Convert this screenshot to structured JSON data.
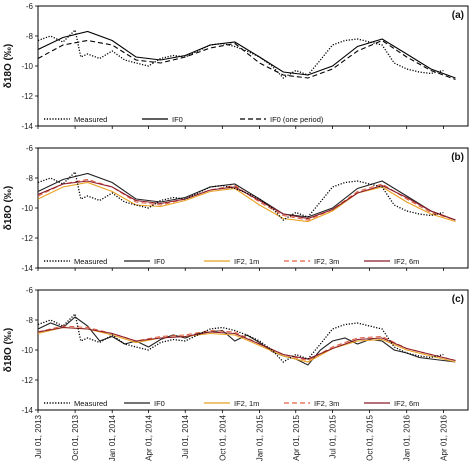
{
  "chart_data": [
    {
      "type": "line",
      "panel_label": "(a)",
      "ylabel": "δ18O (‰)",
      "ylim": [
        -14,
        -6
      ],
      "yticks": [
        "-6",
        "-8",
        "-10",
        "-12",
        "-14"
      ],
      "legend": {
        "placement": "bottom-left",
        "entries": [
          "Measured",
          "IF0",
          "IF0 (one period)"
        ]
      },
      "series": [
        {
          "name": "Measured",
          "style": "dotted",
          "color": "#000000",
          "x": [
            "2013-07-01",
            "2013-08-01",
            "2013-09-01",
            "2013-10-01",
            "2013-10-15",
            "2013-11-01",
            "2013-12-01",
            "2014-01-01",
            "2014-02-01",
            "2014-03-01",
            "2014-04-01",
            "2014-05-01",
            "2014-06-01",
            "2014-07-01",
            "2014-08-01",
            "2014-09-01",
            "2014-10-01",
            "2014-11-01",
            "2014-12-01",
            "2015-01-01",
            "2015-02-01",
            "2015-03-01",
            "2015-04-01",
            "2015-05-01",
            "2015-06-01",
            "2015-07-01",
            "2015-08-01",
            "2015-09-01",
            "2015-10-01",
            "2015-11-01",
            "2015-12-01",
            "2016-01-01",
            "2016-02-01",
            "2016-03-01",
            "2016-04-01"
          ],
          "y": [
            -8.3,
            -8.0,
            -8.4,
            -7.6,
            -9.4,
            -9.2,
            -9.5,
            -9.0,
            -9.6,
            -9.8,
            -10.0,
            -9.5,
            -9.3,
            -9.4,
            -9.0,
            -8.6,
            -8.5,
            -8.7,
            -9.0,
            -9.4,
            -10.0,
            -10.8,
            -10.3,
            -10.6,
            -9.6,
            -8.6,
            -8.3,
            -8.2,
            -8.4,
            -8.6,
            -9.8,
            -10.2,
            -10.4,
            -10.5,
            -10.3
          ]
        },
        {
          "name": "IF0",
          "style": "solid",
          "color": "#000000",
          "x": [
            "2013-07-01",
            "2013-09-01",
            "2013-11-01",
            "2014-01-01",
            "2014-03-01",
            "2014-05-01",
            "2014-07-01",
            "2014-09-01",
            "2014-11-01",
            "2015-01-01",
            "2015-03-01",
            "2015-05-01",
            "2015-07-01",
            "2015-09-01",
            "2015-11-01",
            "2016-01-01",
            "2016-03-01",
            "2016-05-01"
          ],
          "y": [
            -8.9,
            -8.1,
            -7.7,
            -8.3,
            -9.4,
            -9.6,
            -9.3,
            -8.6,
            -8.4,
            -9.4,
            -10.4,
            -10.6,
            -10.0,
            -8.7,
            -8.2,
            -9.2,
            -10.2,
            -10.8
          ]
        },
        {
          "name": "IF0 (one period)",
          "style": "dashed",
          "color": "#000000",
          "x": [
            "2013-07-01",
            "2013-09-01",
            "2013-11-01",
            "2014-01-01",
            "2014-03-01",
            "2014-05-01",
            "2014-07-01",
            "2014-09-01",
            "2014-11-01",
            "2015-01-01",
            "2015-03-01",
            "2015-05-01",
            "2015-07-01",
            "2015-09-01",
            "2015-11-01",
            "2016-01-01",
            "2016-03-01",
            "2016-05-01"
          ],
          "y": [
            -9.5,
            -8.6,
            -8.3,
            -8.6,
            -9.6,
            -9.8,
            -9.4,
            -8.8,
            -8.5,
            -9.8,
            -10.6,
            -10.8,
            -10.2,
            -9.0,
            -8.3,
            -9.4,
            -10.3,
            -10.9
          ]
        }
      ]
    },
    {
      "type": "line",
      "panel_label": "(b)",
      "ylabel": "δ18O (‰)",
      "ylim": [
        -14,
        -6
      ],
      "yticks": [
        "-6",
        "-8",
        "-10",
        "-12",
        "-14"
      ],
      "legend": {
        "placement": "bottom-left",
        "entries": [
          "Measured",
          "IF0",
          "IF2, 1m",
          "IF2, 3m",
          "IF2, 6m"
        ]
      },
      "series": [
        {
          "name": "Measured",
          "style": "dotted",
          "color": "#000000",
          "x": [
            "2013-07-01",
            "2013-08-01",
            "2013-09-01",
            "2013-10-01",
            "2013-10-15",
            "2013-11-01",
            "2013-12-01",
            "2014-01-01",
            "2014-02-01",
            "2014-03-01",
            "2014-04-01",
            "2014-05-01",
            "2014-06-01",
            "2014-07-01",
            "2014-08-01",
            "2014-09-01",
            "2014-10-01",
            "2014-11-01",
            "2014-12-01",
            "2015-01-01",
            "2015-02-01",
            "2015-03-01",
            "2015-04-01",
            "2015-05-01",
            "2015-06-01",
            "2015-07-01",
            "2015-08-01",
            "2015-09-01",
            "2015-10-01",
            "2015-11-01",
            "2015-12-01",
            "2016-01-01",
            "2016-02-01",
            "2016-03-01",
            "2016-04-01"
          ],
          "y": [
            -8.3,
            -8.0,
            -8.4,
            -7.6,
            -9.4,
            -9.2,
            -9.5,
            -9.0,
            -9.6,
            -9.8,
            -10.0,
            -9.5,
            -9.3,
            -9.4,
            -9.0,
            -8.6,
            -8.5,
            -8.7,
            -9.0,
            -9.4,
            -10.0,
            -10.8,
            -10.3,
            -10.6,
            -9.6,
            -8.6,
            -8.3,
            -8.2,
            -8.4,
            -8.6,
            -9.8,
            -10.2,
            -10.4,
            -10.5,
            -10.3
          ]
        },
        {
          "name": "IF0",
          "style": "solid",
          "color": "#222222",
          "x": [
            "2013-07-01",
            "2013-09-01",
            "2013-11-01",
            "2014-01-01",
            "2014-03-01",
            "2014-05-01",
            "2014-07-01",
            "2014-09-01",
            "2014-11-01",
            "2015-01-01",
            "2015-03-01",
            "2015-05-01",
            "2015-07-01",
            "2015-09-01",
            "2015-11-01",
            "2016-01-01",
            "2016-03-01",
            "2016-05-01"
          ],
          "y": [
            -8.9,
            -8.1,
            -7.7,
            -8.3,
            -9.4,
            -9.6,
            -9.3,
            -8.6,
            -8.4,
            -9.4,
            -10.4,
            -10.6,
            -10.0,
            -8.7,
            -8.2,
            -9.2,
            -10.2,
            -10.8
          ]
        },
        {
          "name": "IF2, 1m",
          "style": "solid",
          "color": "#e8a020",
          "x": [
            "2013-07-01",
            "2013-09-01",
            "2013-11-01",
            "2014-01-01",
            "2014-03-01",
            "2014-05-01",
            "2014-07-01",
            "2014-09-01",
            "2014-11-01",
            "2015-01-01",
            "2015-03-01",
            "2015-05-01",
            "2015-07-01",
            "2015-09-01",
            "2015-11-01",
            "2016-01-01",
            "2016-03-01",
            "2016-05-01"
          ],
          "y": [
            -9.4,
            -8.6,
            -8.3,
            -8.9,
            -9.8,
            -9.9,
            -9.5,
            -8.9,
            -8.7,
            -9.8,
            -10.7,
            -10.9,
            -10.2,
            -9.0,
            -8.6,
            -9.6,
            -10.4,
            -10.9
          ]
        },
        {
          "name": "IF2, 3m",
          "style": "dashed",
          "color": "#e06040",
          "x": [
            "2013-07-01",
            "2013-09-01",
            "2013-11-01",
            "2014-01-01",
            "2014-03-01",
            "2014-05-01",
            "2014-07-01",
            "2014-09-01",
            "2014-11-01",
            "2015-01-01",
            "2015-03-01",
            "2015-05-01",
            "2015-07-01",
            "2015-09-01",
            "2015-11-01",
            "2016-01-01",
            "2016-03-01",
            "2016-05-01"
          ],
          "y": [
            -9.2,
            -8.4,
            -8.1,
            -8.6,
            -9.6,
            -9.8,
            -9.4,
            -8.8,
            -8.5,
            -9.6,
            -10.5,
            -10.8,
            -10.1,
            -8.9,
            -8.4,
            -9.4,
            -10.3,
            -10.8
          ]
        },
        {
          "name": "IF2, 6m",
          "style": "solid",
          "color": "#8b1a2a",
          "x": [
            "2013-07-01",
            "2013-09-01",
            "2013-11-01",
            "2014-01-01",
            "2014-03-01",
            "2014-05-01",
            "2014-07-01",
            "2014-09-01",
            "2014-11-01",
            "2015-01-01",
            "2015-03-01",
            "2015-05-01",
            "2015-07-01",
            "2015-09-01",
            "2015-11-01",
            "2016-01-01",
            "2016-03-01",
            "2016-05-01"
          ],
          "y": [
            -9.1,
            -8.4,
            -8.2,
            -8.6,
            -9.5,
            -9.7,
            -9.4,
            -8.8,
            -8.6,
            -9.5,
            -10.4,
            -10.7,
            -10.1,
            -9.0,
            -8.5,
            -9.3,
            -10.2,
            -10.8
          ]
        }
      ]
    },
    {
      "type": "line",
      "panel_label": "(c)",
      "ylabel": "δ18O (‰)",
      "ylim": [
        -14,
        -6
      ],
      "yticks": [
        "-6",
        "-8",
        "-10",
        "-12",
        "-14"
      ],
      "legend": {
        "placement": "bottom-left",
        "entries": [
          "Measured",
          "IF0",
          "IF2, 1m",
          "IF2, 3m",
          "IF2, 6m"
        ]
      },
      "series": [
        {
          "name": "Measured",
          "style": "dotted",
          "color": "#000000",
          "x": [
            "2013-07-01",
            "2013-08-01",
            "2013-09-01",
            "2013-10-01",
            "2013-10-15",
            "2013-11-01",
            "2013-12-01",
            "2014-01-01",
            "2014-02-01",
            "2014-03-01",
            "2014-04-01",
            "2014-05-01",
            "2014-06-01",
            "2014-07-01",
            "2014-08-01",
            "2014-09-01",
            "2014-10-01",
            "2014-11-01",
            "2014-12-01",
            "2015-01-01",
            "2015-02-01",
            "2015-03-01",
            "2015-04-01",
            "2015-05-01",
            "2015-06-01",
            "2015-07-01",
            "2015-08-01",
            "2015-09-01",
            "2015-10-01",
            "2015-11-01",
            "2015-12-01",
            "2016-01-01",
            "2016-02-01",
            "2016-03-01",
            "2016-04-01"
          ],
          "y": [
            -8.3,
            -8.0,
            -8.4,
            -7.6,
            -9.4,
            -9.2,
            -9.5,
            -9.0,
            -9.6,
            -9.8,
            -10.0,
            -9.5,
            -9.3,
            -9.4,
            -9.0,
            -8.6,
            -8.5,
            -8.7,
            -9.0,
            -9.4,
            -10.0,
            -10.8,
            -10.3,
            -10.6,
            -9.6,
            -8.6,
            -8.3,
            -8.2,
            -8.4,
            -8.6,
            -9.8,
            -10.2,
            -10.4,
            -10.5,
            -10.3
          ]
        },
        {
          "name": "IF0",
          "style": "solid",
          "color": "#222222",
          "x": [
            "2013-07-01",
            "2013-08-01",
            "2013-09-01",
            "2013-10-01",
            "2013-11-01",
            "2013-12-01",
            "2014-01-01",
            "2014-02-01",
            "2014-03-01",
            "2014-04-01",
            "2014-05-01",
            "2014-06-01",
            "2014-07-01",
            "2014-08-01",
            "2014-09-01",
            "2014-10-01",
            "2014-11-01",
            "2014-12-01",
            "2015-01-01",
            "2015-02-01",
            "2015-03-01",
            "2015-04-01",
            "2015-05-01",
            "2015-06-01",
            "2015-07-01",
            "2015-08-01",
            "2015-09-01",
            "2015-10-01",
            "2015-11-01",
            "2015-12-01",
            "2016-01-01",
            "2016-02-01",
            "2016-03-01",
            "2016-04-01",
            "2016-05-01"
          ],
          "y": [
            -8.6,
            -8.2,
            -8.5,
            -7.8,
            -8.4,
            -9.4,
            -9.1,
            -9.6,
            -9.4,
            -9.8,
            -9.3,
            -9.0,
            -9.2,
            -8.9,
            -8.8,
            -8.7,
            -9.4,
            -9.0,
            -9.5,
            -10.1,
            -10.4,
            -10.6,
            -11.0,
            -10.0,
            -9.4,
            -9.2,
            -9.6,
            -9.3,
            -9.4,
            -10.0,
            -10.2,
            -10.5,
            -10.6,
            -10.7,
            -10.8
          ]
        },
        {
          "name": "IF2, 1m",
          "style": "solid",
          "color": "#e8a020",
          "x": [
            "2013-07-01",
            "2013-09-01",
            "2013-11-01",
            "2014-01-01",
            "2014-03-01",
            "2014-05-01",
            "2014-07-01",
            "2014-09-01",
            "2014-11-01",
            "2015-01-01",
            "2015-03-01",
            "2015-05-01",
            "2015-07-01",
            "2015-09-01",
            "2015-11-01",
            "2016-01-01",
            "2016-03-01",
            "2016-05-01"
          ],
          "y": [
            -8.9,
            -8.5,
            -8.6,
            -9.0,
            -9.5,
            -9.2,
            -9.1,
            -8.9,
            -9.0,
            -9.7,
            -10.4,
            -10.8,
            -9.9,
            -9.4,
            -9.3,
            -10.0,
            -10.4,
            -10.8
          ]
        },
        {
          "name": "IF2, 3m",
          "style": "dashed",
          "color": "#e06040",
          "x": [
            "2013-07-01",
            "2013-09-01",
            "2013-11-01",
            "2014-01-01",
            "2014-03-01",
            "2014-05-01",
            "2014-07-01",
            "2014-09-01",
            "2014-11-01",
            "2015-01-01",
            "2015-03-01",
            "2015-05-01",
            "2015-07-01",
            "2015-09-01",
            "2015-11-01",
            "2016-01-01",
            "2016-03-01",
            "2016-05-01"
          ],
          "y": [
            -8.8,
            -8.4,
            -8.5,
            -8.9,
            -9.4,
            -9.1,
            -9.0,
            -8.7,
            -8.8,
            -9.6,
            -10.3,
            -10.7,
            -9.8,
            -9.2,
            -9.1,
            -9.9,
            -10.3,
            -10.7
          ]
        },
        {
          "name": "IF2, 6m",
          "style": "solid",
          "color": "#8b1a2a",
          "x": [
            "2013-07-01",
            "2013-09-01",
            "2013-11-01",
            "2014-01-01",
            "2014-03-01",
            "2014-05-01",
            "2014-07-01",
            "2014-09-01",
            "2014-11-01",
            "2015-01-01",
            "2015-03-01",
            "2015-05-01",
            "2015-07-01",
            "2015-09-01",
            "2015-11-01",
            "2016-01-01",
            "2016-03-01",
            "2016-05-01"
          ],
          "y": [
            -8.8,
            -8.5,
            -8.6,
            -8.9,
            -9.4,
            -9.2,
            -9.1,
            -8.8,
            -8.9,
            -9.6,
            -10.3,
            -10.6,
            -9.9,
            -9.3,
            -9.2,
            -9.9,
            -10.3,
            -10.7
          ]
        }
      ]
    }
  ],
  "x_axis": {
    "range": [
      "2013-07-01",
      "2016-06-01"
    ],
    "ticks": [
      {
        "date": "2013-07-01",
        "label": "Jul 01, 2013"
      },
      {
        "date": "2013-10-01",
        "label": "Oct 01, 2013"
      },
      {
        "date": "2014-01-01",
        "label": "Jan 01, 2014"
      },
      {
        "date": "2014-04-01",
        "label": "Apr 01, 2014"
      },
      {
        "date": "2014-07-01",
        "label": "Jul 01, 2014"
      },
      {
        "date": "2014-10-01",
        "label": "Oct 01, 2014"
      },
      {
        "date": "2015-01-01",
        "label": "Jan 01, 2015"
      },
      {
        "date": "2015-04-01",
        "label": "Apr 01, 2015"
      },
      {
        "date": "2015-07-01",
        "label": "Jul 01, 2015"
      },
      {
        "date": "2015-10-01",
        "label": "Oct 01, 2015"
      },
      {
        "date": "2016-01-01",
        "label": "Jan 01, 2016"
      },
      {
        "date": "2016-04-01",
        "label": "Apr 01, 2016"
      }
    ]
  }
}
